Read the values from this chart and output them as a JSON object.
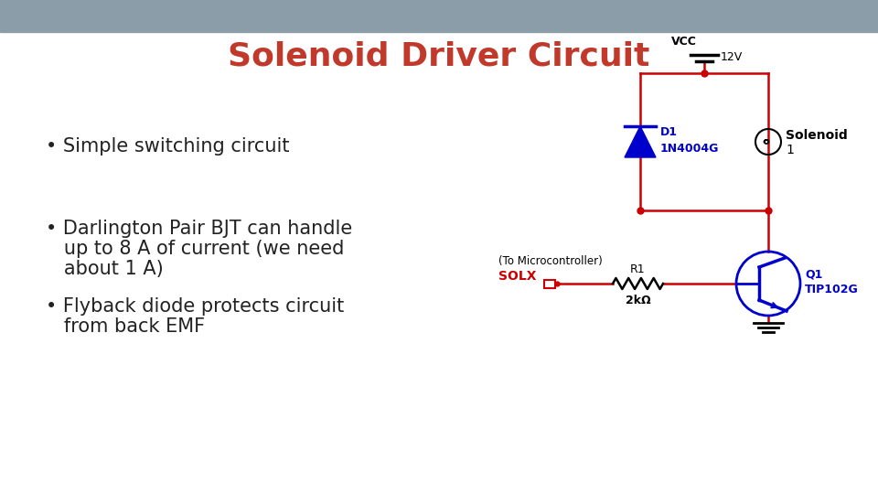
{
  "title": "Solenoid Driver Circuit",
  "title_color": "#C0392B",
  "title_fontsize": 26,
  "bg_color": "#FFFFFF",
  "header_bar_color": "#8B9DA8",
  "bullets": [
    "Simple switching circuit",
    "Darlington Pair BJT can handle\nup to 8 A of current (we need\nabout 1 A)",
    "Flyback diode protects circuit\nfrom back EMF"
  ],
  "bullet_fontsize": 15,
  "bullet_color": "#222222",
  "circuit": {
    "vcc_label": "VCC",
    "vcc_voltage": "12V",
    "diode_label": "D1",
    "diode_sublabel": "1N4004G",
    "diode_color": "#0000CC",
    "solenoid_label": "Solenoid",
    "solenoid_sublabel": "1",
    "transistor_label": "Q1",
    "transistor_sublabel": "TIP102G",
    "transistor_color": "#0000CC",
    "resistor_label": "R1",
    "resistor_value": "2kΩ",
    "signal_label": "SOLX",
    "signal_color": "#CC0000",
    "micro_label": "(To Microcontroller)",
    "wire_red": "#CC0000",
    "wire_blue": "#0000CC",
    "wire_black": "#000000"
  }
}
